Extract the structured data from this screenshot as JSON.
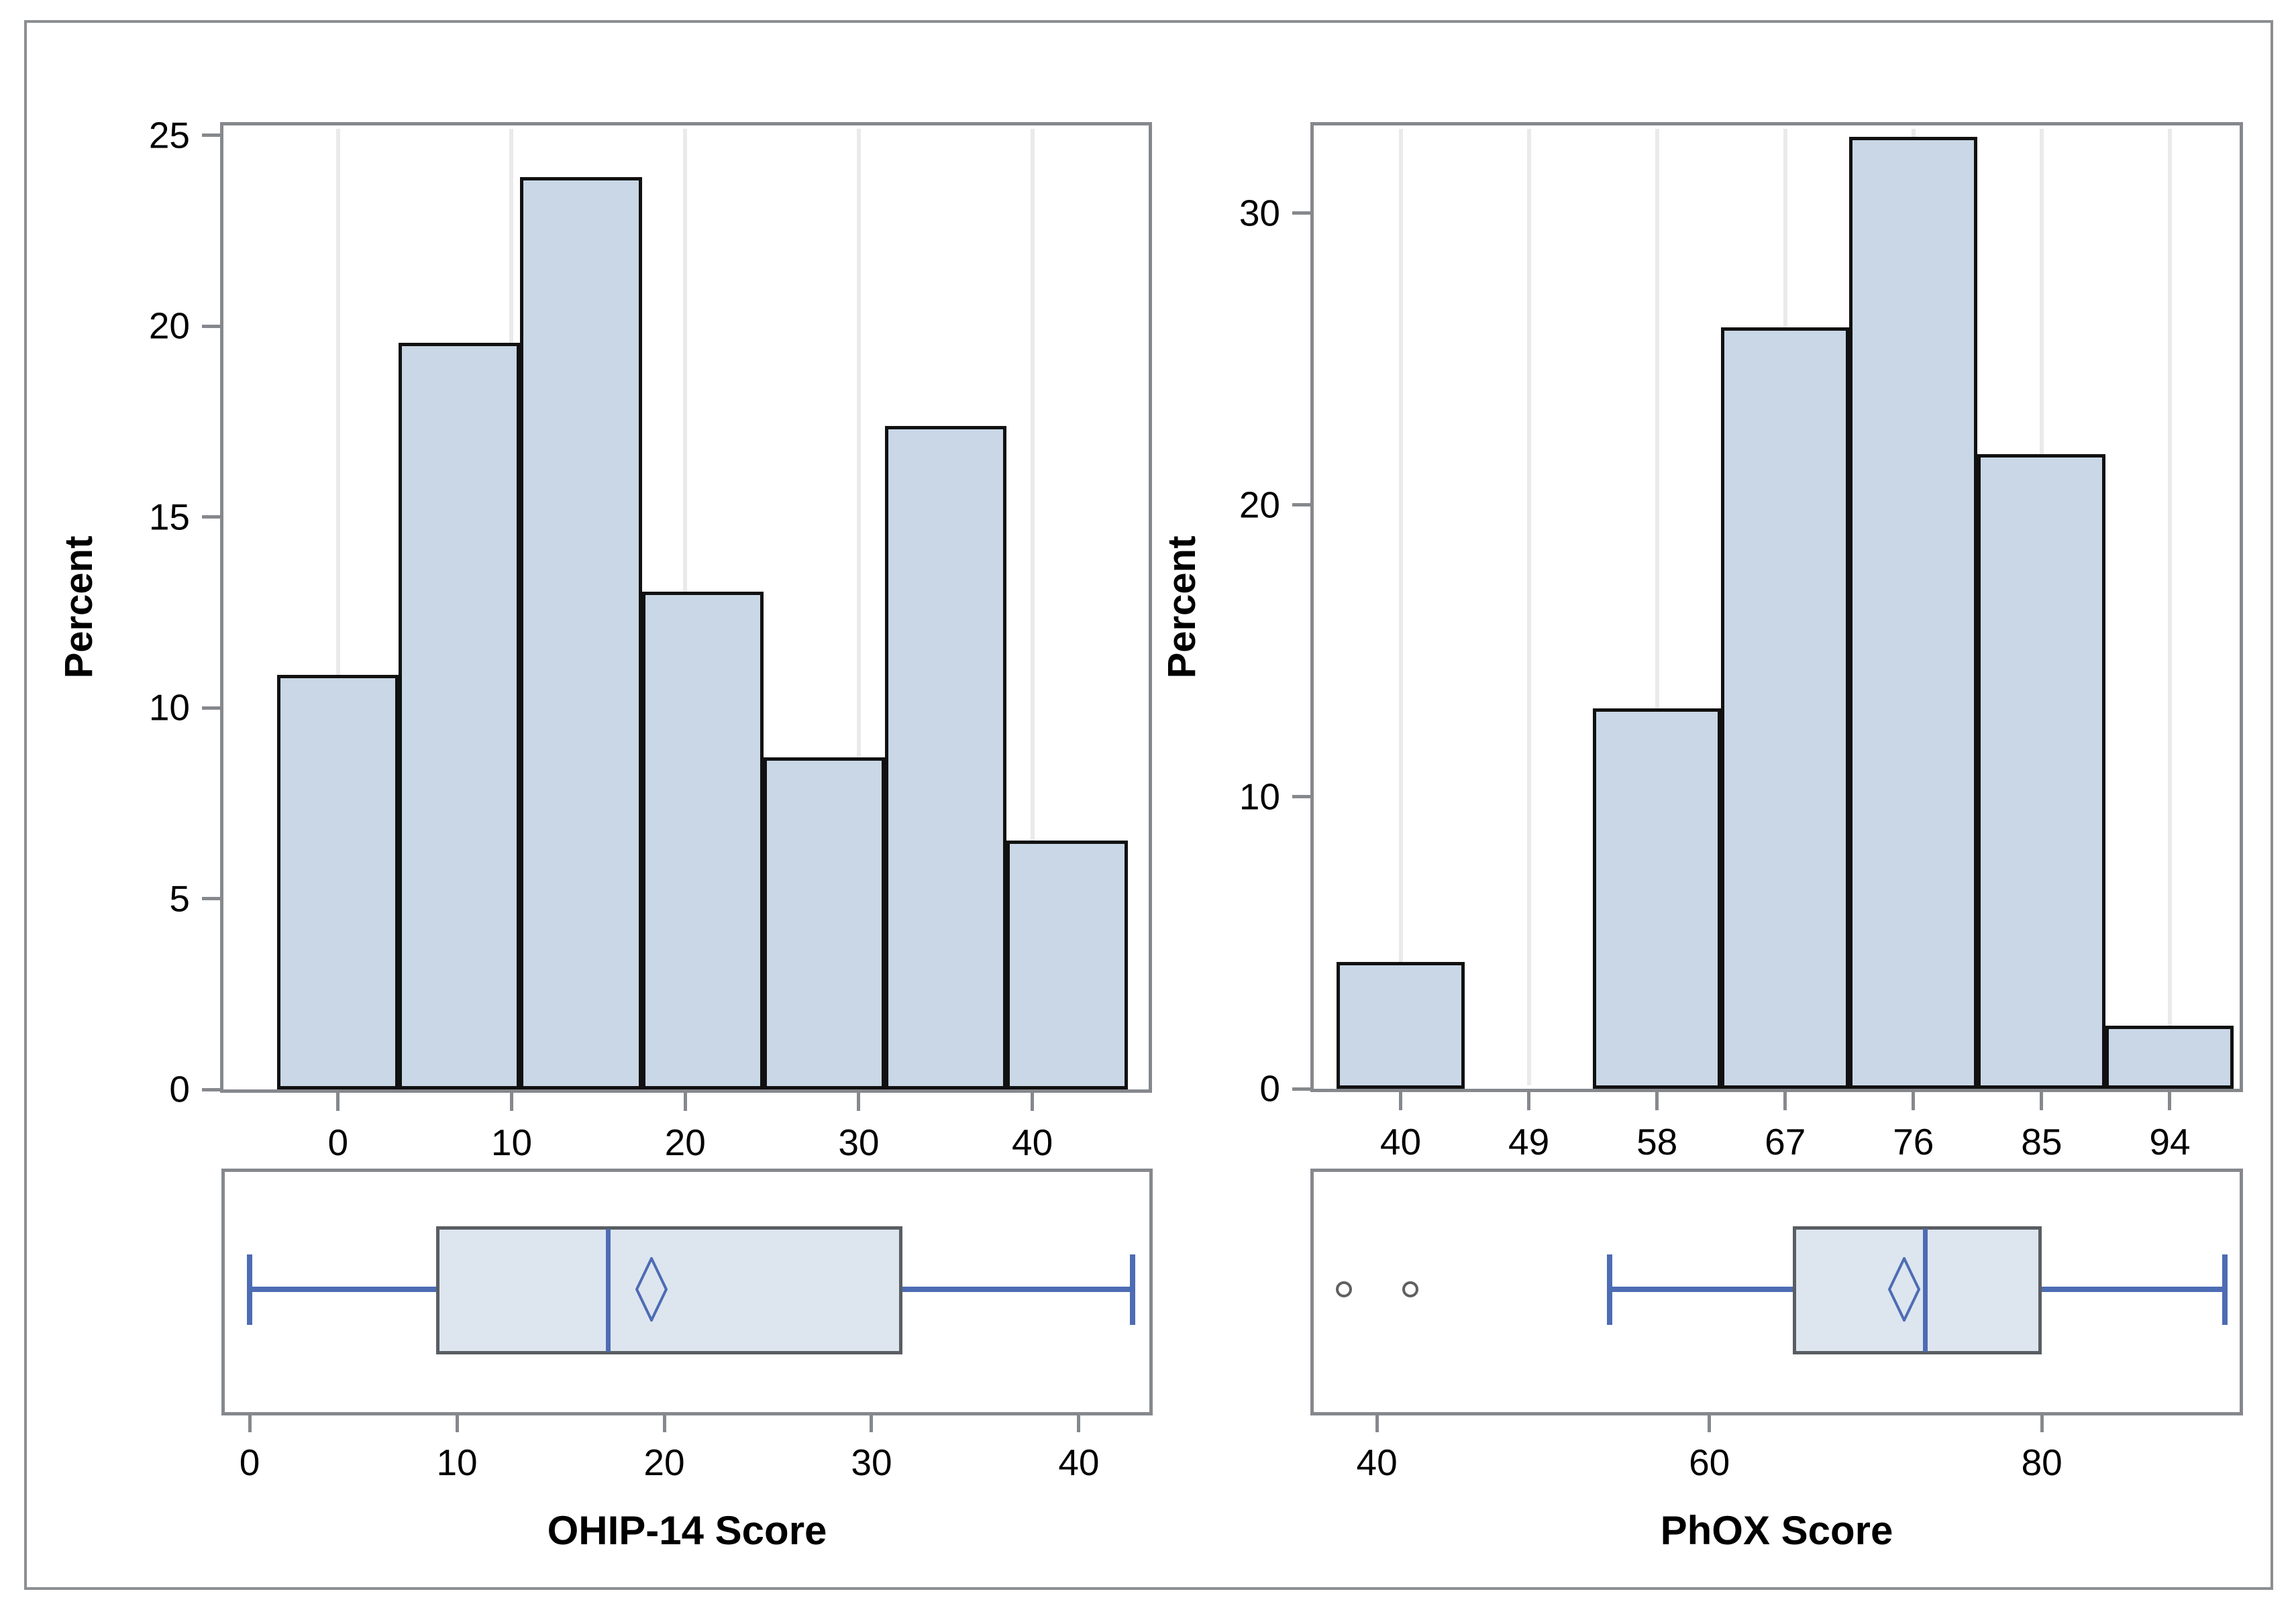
{
  "colors": {
    "bar_fill": "#c9d7e6",
    "bar_stroke": "#111111",
    "box_fill": "#dde5ef",
    "box_stroke": "#5a5e63",
    "blue_line": "#4d6cb4",
    "panel_border": "#85888c",
    "grid_line": "#eaeaea",
    "tick_mark": "#85888c",
    "outlier_stroke": "#606060",
    "outer_frame": "#8b8e92",
    "text": "#000000"
  },
  "chart_data": [
    {
      "id": "ohip_histogram",
      "type": "bar",
      "subtype": "histogram",
      "title": "",
      "xlabel": "",
      "ylabel": "Percent",
      "bin_midpoints": [
        0,
        7,
        14,
        21,
        28,
        35,
        42
      ],
      "bin_width": 7,
      "values": [
        10.87,
        19.57,
        23.91,
        13.04,
        8.7,
        17.39,
        6.52
      ],
      "x_ticks": [
        0,
        10,
        20,
        30,
        40
      ],
      "y_ticks": [
        0,
        5,
        10,
        15,
        20,
        25
      ],
      "x_range": [
        -6.6,
        46.7
      ],
      "y_range": [
        0,
        25.26
      ],
      "grid": "vertical-lines-at-x-ticks",
      "legend": "none"
    },
    {
      "id": "ohip_boxplot",
      "type": "boxplot",
      "orientation": "horizontal",
      "xlabel": "OHIP-14 Score",
      "x_ticks": [
        0,
        10,
        20,
        30,
        40
      ],
      "x_range": [
        -1.2,
        43.4
      ],
      "whisker_low": 0,
      "q1": 9,
      "median": 17.3,
      "q3": 31.5,
      "whisker_high": 42.6,
      "mean": 19.4,
      "outliers": [],
      "legend": "none"
    },
    {
      "id": "phox_histogram",
      "type": "bar",
      "subtype": "histogram",
      "title": "",
      "xlabel": "",
      "ylabel": "Percent",
      "bin_midpoints": [
        40,
        49,
        58,
        67,
        76,
        85,
        94
      ],
      "bin_width": 9,
      "values": [
        4.35,
        0,
        13.04,
        26.09,
        32.61,
        21.74,
        2.17
      ],
      "x_ticks": [
        40,
        49,
        58,
        67,
        76,
        85,
        94
      ],
      "y_ticks": [
        0,
        10,
        20,
        30
      ],
      "x_range": [
        33.9,
        98.9
      ],
      "y_range": [
        0,
        33
      ],
      "grid": "vertical-lines-at-x-ticks",
      "legend": "none"
    },
    {
      "id": "phox_boxplot",
      "type": "boxplot",
      "orientation": "horizontal",
      "xlabel": "PhOX Score",
      "x_ticks": [
        40,
        60,
        80
      ],
      "x_range": [
        36.2,
        91.9
      ],
      "whisker_low": 54,
      "q1": 65,
      "median": 73,
      "q3": 80,
      "whisker_high": 91,
      "mean": 71.7,
      "outliers": [
        38,
        42
      ],
      "legend": "none"
    }
  ]
}
